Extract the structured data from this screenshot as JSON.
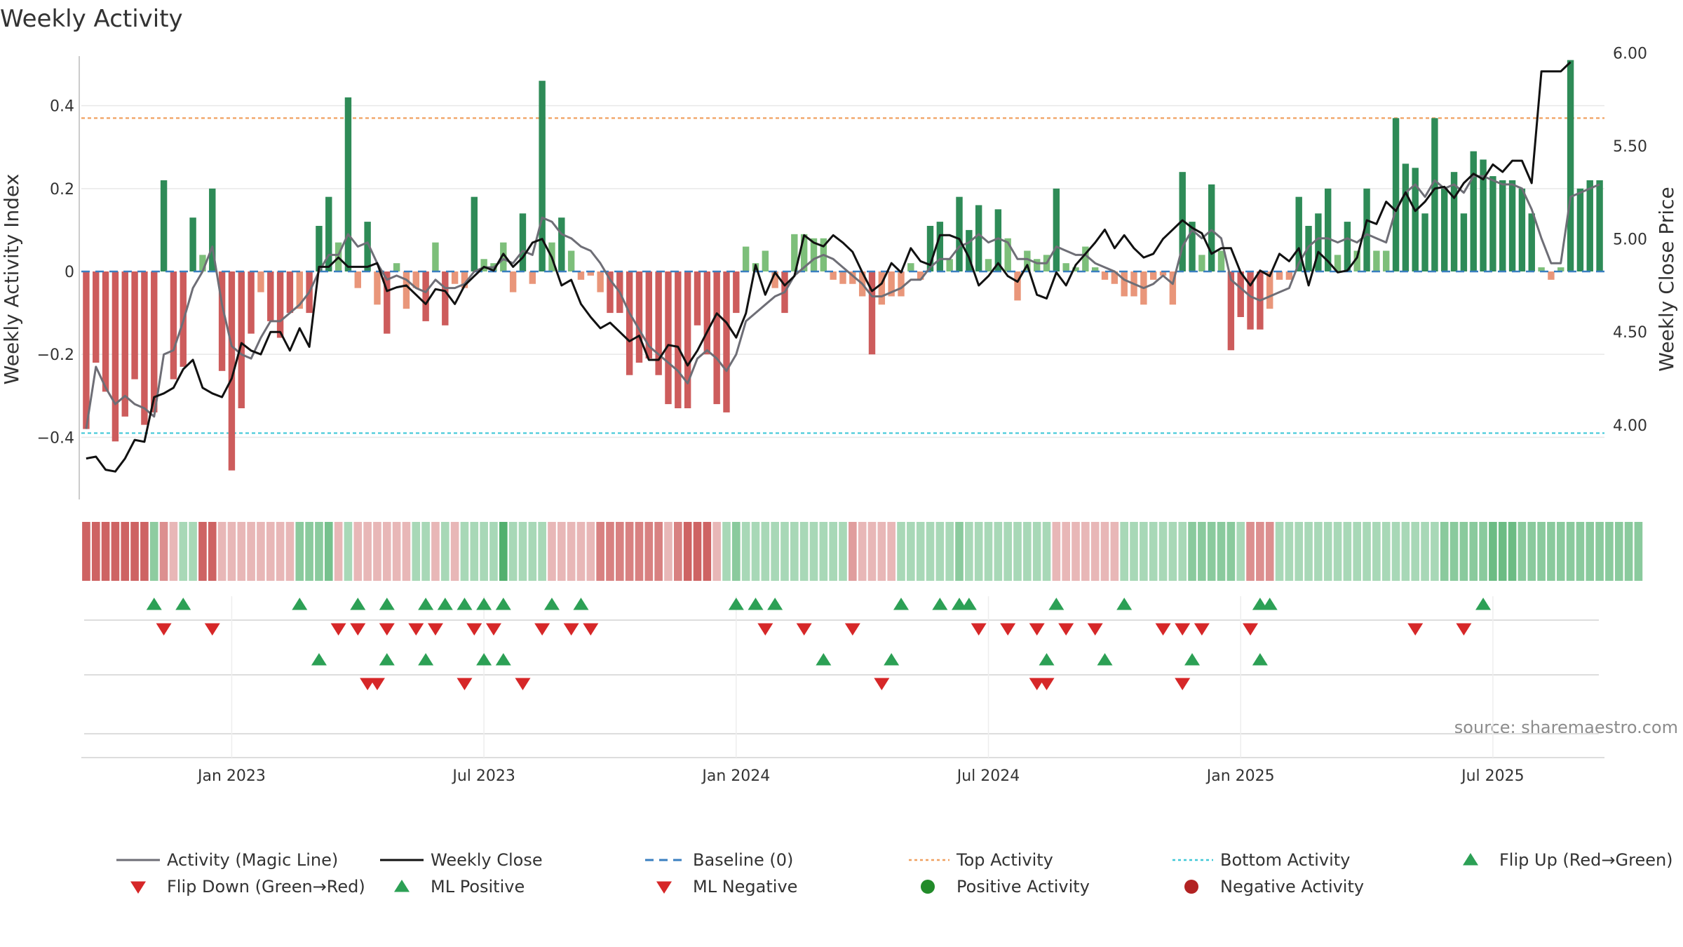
{
  "chart_data": {
    "type": "bar",
    "title": "Weekly Activity",
    "ylabel_left": "Weekly Activity Index",
    "ylabel_right": "Weekly Close Price",
    "source": "source: sharemaestro.com",
    "x_tick_labels": [
      "Jan 2023",
      "Jul 2023",
      "Jan 2024",
      "Jul 2024",
      "Jan 2025",
      "Jul 2025"
    ],
    "x_tick_weeks": [
      15,
      41,
      67,
      93,
      119,
      145
    ],
    "y_left": {
      "range": [
        -0.55,
        0.55
      ],
      "ticks": [
        0.4,
        0.2,
        0,
        -0.2,
        -0.4
      ],
      "tick_labels": [
        "0.4",
        "0.2",
        "0",
        "−0.2",
        "−0.4"
      ]
    },
    "y_right": {
      "range": [
        3.6,
        6.05
      ],
      "ticks": [
        6.0,
        5.5,
        5.0,
        4.5,
        4.0
      ],
      "tick_labels": [
        "6.00",
        "5.50",
        "5.00",
        "4.50",
        "4.00"
      ]
    },
    "top_activity": 0.37,
    "bottom_activity": -0.39,
    "activity": [
      -0.38,
      -0.22,
      -0.29,
      -0.41,
      -0.35,
      -0.26,
      -0.37,
      -0.34,
      0.22,
      -0.26,
      -0.23,
      0.13,
      0.04,
      0.2,
      -0.24,
      -0.48,
      -0.33,
      -0.15,
      -0.05,
      -0.12,
      -0.16,
      -0.1,
      -0.09,
      -0.1,
      0.11,
      0.18,
      0.07,
      0.42,
      -0.04,
      0.12,
      -0.08,
      -0.15,
      0.02,
      -0.09,
      -0.04,
      -0.12,
      0.07,
      -0.13,
      -0.03,
      -0.04,
      0.18,
      0.03,
      0.02,
      0.07,
      -0.05,
      0.14,
      -0.03,
      0.46,
      0.07,
      0.13,
      0.05,
      -0.02,
      -0.01,
      -0.05,
      -0.1,
      -0.1,
      -0.25,
      -0.22,
      -0.21,
      -0.25,
      -0.32,
      -0.33,
      -0.33,
      -0.13,
      -0.2,
      -0.32,
      -0.34,
      -0.1,
      0.06,
      0.02,
      0.05,
      -0.04,
      -0.1,
      0.09,
      0.09,
      0.08,
      0.08,
      -0.02,
      -0.03,
      -0.03,
      -0.06,
      -0.2,
      -0.08,
      -0.06,
      -0.06,
      0.02,
      -0.02,
      0.11,
      0.12,
      0.03,
      0.18,
      0.1,
      0.16,
      0.03,
      0.15,
      0.08,
      -0.07,
      0.05,
      0.03,
      0.04,
      0.2,
      0.02,
      0.01,
      0.06,
      0.01,
      -0.02,
      -0.03,
      -0.06,
      -0.06,
      -0.08,
      -0.02,
      -0.01,
      -0.08,
      0.24,
      0.12,
      0.04,
      0.21,
      0.05,
      -0.19,
      -0.11,
      -0.14,
      -0.14,
      -0.09,
      -0.02,
      -0.02,
      0.18,
      0.11,
      0.14,
      0.2,
      0.04,
      0.12,
      0.05,
      0.2,
      0.05,
      0.05,
      0.37,
      0.26,
      0.25,
      0.14,
      0.37,
      0.2,
      0.24,
      0.14,
      0.29,
      0.27,
      0.23,
      0.22,
      0.22,
      0.2,
      0.14,
      0.01,
      -0.02,
      0.01,
      0.51,
      0.2,
      0.22,
      0.22
    ],
    "magic_line": [
      -0.38,
      -0.23,
      -0.28,
      -0.32,
      -0.3,
      -0.32,
      -0.33,
      -0.35,
      -0.2,
      -0.19,
      -0.12,
      -0.04,
      0.0,
      0.06,
      -0.08,
      -0.18,
      -0.2,
      -0.21,
      -0.16,
      -0.12,
      -0.12,
      -0.1,
      -0.08,
      -0.05,
      0.0,
      0.04,
      0.04,
      0.09,
      0.06,
      0.07,
      0.02,
      -0.02,
      -0.01,
      -0.02,
      -0.04,
      -0.05,
      -0.02,
      -0.04,
      -0.04,
      -0.03,
      0.0,
      0.01,
      0.01,
      0.03,
      0.02,
      0.05,
      0.04,
      0.13,
      0.12,
      0.09,
      0.08,
      0.06,
      0.05,
      0.02,
      -0.02,
      -0.05,
      -0.1,
      -0.14,
      -0.18,
      -0.2,
      -0.22,
      -0.24,
      -0.27,
      -0.21,
      -0.19,
      -0.21,
      -0.24,
      -0.2,
      -0.12,
      -0.1,
      -0.08,
      -0.06,
      -0.05,
      -0.01,
      0.01,
      0.03,
      0.04,
      0.03,
      0.01,
      -0.01,
      -0.03,
      -0.06,
      -0.06,
      -0.05,
      -0.04,
      -0.02,
      -0.02,
      0.01,
      0.03,
      0.03,
      0.06,
      0.07,
      0.09,
      0.07,
      0.08,
      0.07,
      0.03,
      0.03,
      0.02,
      0.02,
      0.06,
      0.05,
      0.04,
      0.04,
      0.02,
      0.01,
      0.0,
      -0.02,
      -0.03,
      -0.04,
      -0.03,
      -0.01,
      -0.03,
      0.06,
      0.1,
      0.08,
      0.1,
      0.08,
      -0.02,
      -0.04,
      -0.06,
      -0.07,
      -0.06,
      -0.05,
      -0.04,
      0.02,
      0.06,
      0.08,
      0.08,
      0.07,
      0.08,
      0.07,
      0.09,
      0.08,
      0.07,
      0.15,
      0.19,
      0.21,
      0.18,
      0.22,
      0.2,
      0.21,
      0.19,
      0.23,
      0.23,
      0.22,
      0.21,
      0.21,
      0.2,
      0.15,
      0.08,
      0.02,
      0.02,
      0.18,
      0.19,
      0.2,
      0.21
    ],
    "weekly_close": [
      3.82,
      3.83,
      3.76,
      3.75,
      3.82,
      3.92,
      3.91,
      4.15,
      4.17,
      4.2,
      4.3,
      4.35,
      4.2,
      4.17,
      4.15,
      4.25,
      4.44,
      4.4,
      4.38,
      4.5,
      4.5,
      4.4,
      4.52,
      4.42,
      4.85,
      4.85,
      4.9,
      4.85,
      4.85,
      4.85,
      4.87,
      4.72,
      4.74,
      4.75,
      4.7,
      4.65,
      4.73,
      4.72,
      4.65,
      4.75,
      4.8,
      4.85,
      4.83,
      4.92,
      4.85,
      4.9,
      4.98,
      5.0,
      4.9,
      4.75,
      4.78,
      4.65,
      4.58,
      4.52,
      4.55,
      4.5,
      4.45,
      4.48,
      4.35,
      4.35,
      4.43,
      4.42,
      4.32,
      4.4,
      4.5,
      4.6,
      4.55,
      4.47,
      4.6,
      4.86,
      4.7,
      4.82,
      4.75,
      4.8,
      5.02,
      4.98,
      4.96,
      5.02,
      4.98,
      4.93,
      4.82,
      4.72,
      4.76,
      4.87,
      4.82,
      4.95,
      4.88,
      4.86,
      5.02,
      5.02,
      5.0,
      4.9,
      4.75,
      4.8,
      4.87,
      4.8,
      4.77,
      4.86,
      4.7,
      4.68,
      4.82,
      4.75,
      4.86,
      4.92,
      4.98,
      5.05,
      4.95,
      5.02,
      4.95,
      4.9,
      4.92,
      5.0,
      5.05,
      5.1,
      5.06,
      5.03,
      4.92,
      4.95,
      4.95,
      4.82,
      4.75,
      4.83,
      4.8,
      4.92,
      4.88,
      4.95,
      4.75,
      4.93,
      4.88,
      4.82,
      4.83,
      4.9,
      5.1,
      5.08,
      5.2,
      5.15,
      5.25,
      5.15,
      5.2,
      5.27,
      5.28,
      5.22,
      5.3,
      5.35,
      5.32,
      5.4,
      5.36,
      5.42,
      5.42,
      5.3,
      5.9,
      5.9,
      5.9,
      5.95
    ],
    "strip_values": [
      -0.34,
      -0.34,
      -0.34,
      -0.34,
      -0.34,
      -0.34,
      -0.34,
      0.12,
      -0.18,
      -0.04,
      0.04,
      0.04,
      -0.34,
      -0.34,
      -0.04,
      -0.04,
      -0.04,
      -0.04,
      -0.04,
      -0.04,
      -0.04,
      -0.04,
      0.13,
      0.13,
      0.13,
      0.19,
      -0.04,
      0.04,
      -0.04,
      -0.04,
      -0.04,
      -0.04,
      -0.04,
      -0.04,
      0.04,
      0.04,
      -0.04,
      0.04,
      -0.04,
      0.04,
      0.04,
      0.04,
      0.04,
      0.3,
      0.04,
      0.04,
      0.04,
      0.04,
      -0.04,
      -0.04,
      -0.04,
      -0.04,
      -0.04,
      -0.23,
      -0.23,
      -0.23,
      -0.23,
      -0.23,
      -0.23,
      -0.23,
      -0.04,
      -0.23,
      -0.34,
      -0.34,
      -0.34,
      -0.04,
      0.04,
      0.13,
      0.04,
      0.04,
      0.04,
      0.04,
      0.04,
      0.04,
      0.04,
      0.04,
      0.04,
      0.04,
      0.04,
      -0.13,
      -0.04,
      -0.04,
      -0.04,
      -0.04,
      0.04,
      0.04,
      0.04,
      0.04,
      0.04,
      0.04,
      0.13,
      0.04,
      0.04,
      0.04,
      0.04,
      0.04,
      0.04,
      0.04,
      0.04,
      0.04,
      -0.04,
      -0.04,
      -0.04,
      -0.04,
      -0.04,
      -0.04,
      -0.04,
      0.04,
      0.04,
      0.04,
      0.04,
      0.04,
      0.04,
      0.04,
      0.13,
      0.13,
      0.13,
      0.13,
      0.13,
      0.04,
      -0.18,
      -0.18,
      -0.18,
      0.04,
      0.04,
      0.04,
      0.04,
      0.04,
      0.04,
      0.04,
      0.04,
      0.04,
      0.04,
      0.04,
      0.04,
      0.04,
      0.04,
      0.04,
      0.04,
      0.04,
      0.13,
      0.13,
      0.13,
      0.13,
      0.13,
      0.22,
      0.22,
      0.22,
      0.13,
      0.13,
      0.13,
      0.13,
      0.13,
      0.13,
      0.13,
      0.13,
      0.13,
      0.13,
      0.13,
      0.13,
      0.13
    ],
    "flip_up_weeks": [
      7,
      10,
      22,
      28,
      31,
      35,
      37,
      39,
      41,
      43,
      48,
      51,
      67,
      69,
      71,
      84,
      88,
      90,
      91,
      100,
      107
    ],
    "flip_down_weeks": [
      8,
      13,
      26,
      28,
      31,
      34,
      36,
      40,
      42,
      47,
      50,
      52,
      70,
      74,
      79,
      92,
      95,
      98,
      101,
      104,
      111,
      113,
      137
    ],
    "ml_positive_weeks": [
      24,
      31,
      35,
      41,
      43,
      76,
      83,
      99,
      105,
      114
    ],
    "ml_negative_weeks": [
      29,
      30,
      39,
      45,
      82,
      98,
      99,
      113
    ],
    "flip_up_weeks_late": [
      121,
      122,
      144
    ],
    "flip_down_weeks_late": [
      115,
      120,
      142
    ],
    "ml_positive_weeks_late": [
      121
    ],
    "ml_negative_weeks_late": [],
    "legend": [
      {
        "label": "Activity (Magic Line)",
        "symbol": "line",
        "color": "#6e6e76"
      },
      {
        "label": "Weekly Close",
        "symbol": "line",
        "color": "#111111"
      },
      {
        "label": "Baseline (0)",
        "symbol": "dash",
        "color": "#3a7fc0"
      },
      {
        "label": "Top Activity",
        "symbol": "dot-line",
        "color": "#f0a060"
      },
      {
        "label": "Bottom Activity",
        "symbol": "dot-line",
        "color": "#40c8d8"
      },
      {
        "label": "Flip Up (Red→Green)",
        "symbol": "tri-up",
        "color": "#2ca055"
      },
      {
        "label": "Flip Down (Green→Red)",
        "symbol": "tri-down",
        "color": "#d62728"
      },
      {
        "label": "ML Positive",
        "symbol": "tri-up",
        "color": "#2ca055"
      },
      {
        "label": "ML Negative",
        "symbol": "tri-down",
        "color": "#d62728"
      },
      {
        "label": "Positive Activity",
        "symbol": "circle",
        "color": "#228b2a"
      },
      {
        "label": "Negative Activity",
        "symbol": "circle",
        "color": "#b22222"
      }
    ],
    "colors": {
      "pos_strong": "#2e8b57",
      "pos_light": "#7dbf7a",
      "neg_strong": "#cd5c5c",
      "neg_light": "#e9967a",
      "up_triangle": "#2ca055",
      "down_triangle": "#d62728"
    }
  }
}
